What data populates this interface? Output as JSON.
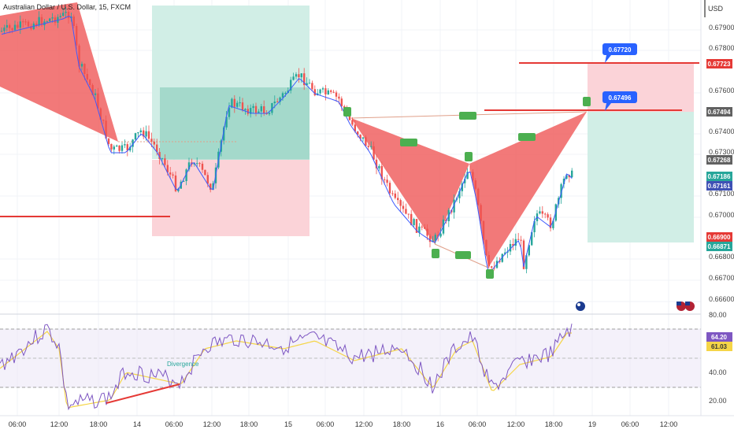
{
  "header": {
    "symbol_title": "Australian Dollar / U.S. Dollar, 15, FXCM",
    "currency": "USD"
  },
  "axis": {
    "price_ticks": [
      "0.67900",
      "0.67800",
      "0.67600",
      "0.67400",
      "0.67300",
      "0.67100",
      "0.67000",
      "0.66800",
      "0.66700",
      "0.66600"
    ],
    "rsi_ticks": [
      "80.00",
      "40.00",
      "20.00"
    ],
    "time_ticks": [
      "06:00",
      "12:00",
      "18:00",
      "14",
      "06:00",
      "12:00",
      "18:00",
      "15",
      "06:00",
      "12:00",
      "18:00",
      "16",
      "06:00",
      "12:00",
      "18:00",
      "19",
      "06:00",
      "12:00"
    ]
  },
  "price_labels": [
    {
      "text": "0.67723",
      "color": "#e53935"
    },
    {
      "text": "0.67494",
      "color": "#616161"
    },
    {
      "text": "0.67268",
      "color": "#616161"
    },
    {
      "text": "0.67186",
      "color": "#26a69a"
    },
    {
      "text": "0.67161",
      "color": "#3f51b5"
    },
    {
      "text": "0.66900",
      "color": "#e53935"
    },
    {
      "text": "0.66871",
      "color": "#26a69a"
    }
  ],
  "rsi_labels": [
    {
      "text": "64.20",
      "color": "#7e57c2"
    },
    {
      "text": "61.03",
      "color": "#f5d547"
    }
  ],
  "callouts": [
    "0.67720",
    "0.67496"
  ],
  "annotations": {
    "divergence": "Divergence"
  },
  "colors": {
    "up": "#26a69a",
    "down": "#ef5350",
    "pattern_fill": "#f06262",
    "tp_zone": "#d1eee6",
    "sl_zone": "#fbd3d8",
    "rsi_line": "#7e57c2",
    "rsi_ma": "#f5d547",
    "callout_blue": "#2962ff",
    "marker_green": "#4caf50"
  },
  "icons": [
    "australia-flag-icon",
    "usa-flag-icon"
  ]
}
